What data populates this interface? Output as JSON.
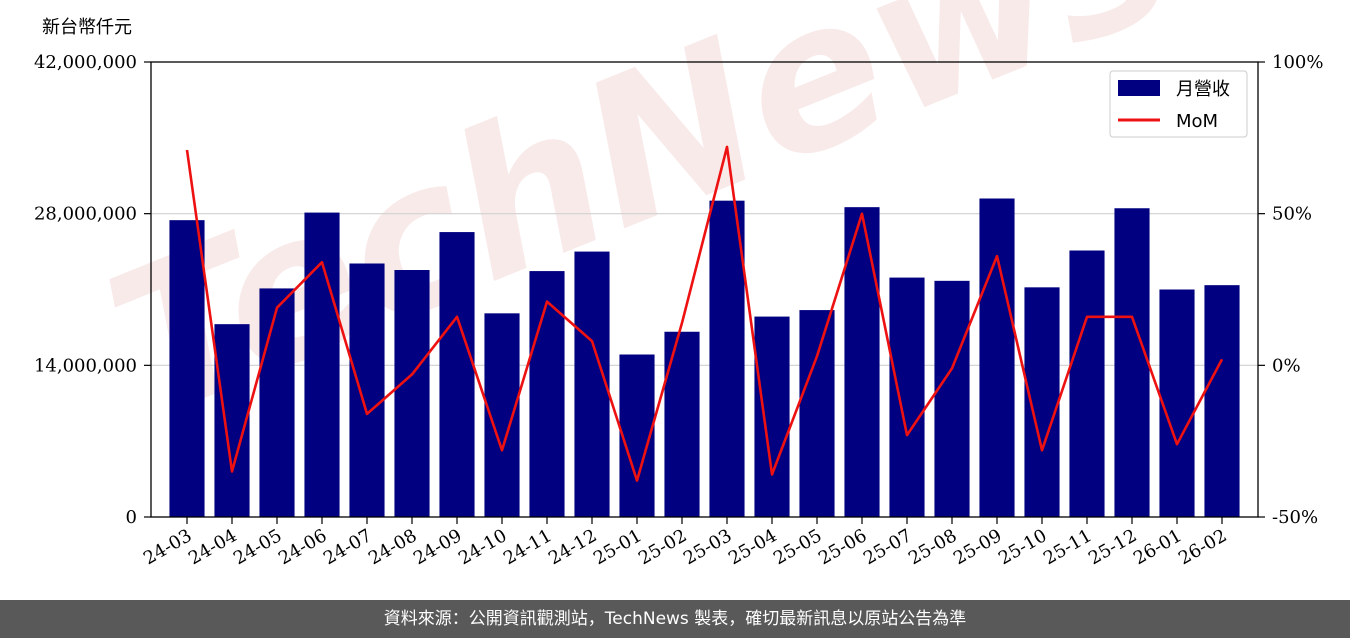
{
  "unit_label": "新台幣仟元",
  "footer": "資料來源：公開資訊觀測站，TechNews 製表，確切最新訊息以原站公告為準",
  "watermark": "TechNews",
  "colors": {
    "bar": "#000080",
    "line": "#ee1111",
    "grid": "#d0d0d0"
  },
  "chart_data": {
    "type": "bar",
    "categories": [
      "24-03",
      "24-04",
      "24-05",
      "24-06",
      "24-07",
      "24-08",
      "24-09",
      "24-10",
      "24-11",
      "24-12",
      "25-01",
      "25-02",
      "25-03",
      "25-04",
      "25-05",
      "25-06",
      "25-07",
      "25-08",
      "25-09",
      "25-10",
      "25-11",
      "25-12",
      "26-01",
      "26-02"
    ],
    "series": [
      {
        "name": "月營收",
        "type": "bar",
        "axis": "left",
        "values": [
          27400000,
          17800000,
          21100000,
          28100000,
          23400000,
          22800000,
          26300000,
          18800000,
          22700000,
          24500000,
          15000000,
          17100000,
          29200000,
          18500000,
          19100000,
          28600000,
          22100000,
          21800000,
          29400000,
          21200000,
          24600000,
          28500000,
          21000000,
          21400000
        ]
      },
      {
        "name": "MoM",
        "type": "line",
        "axis": "right",
        "values": [
          71,
          -35,
          19,
          34,
          -16,
          -3,
          16,
          -28,
          21,
          8,
          -38,
          14,
          72,
          -36,
          3,
          50,
          -23,
          -1,
          36,
          -28,
          16,
          16,
          -26,
          2
        ]
      }
    ],
    "y_left": {
      "min": 0,
      "max": 42000000,
      "ticks": [
        0,
        14000000,
        28000000,
        42000000
      ],
      "tick_labels": [
        "0",
        "14,000,000",
        "28,000,000",
        "42,000,000"
      ]
    },
    "y_right": {
      "min": -50,
      "max": 100,
      "ticks": [
        -50,
        0,
        50,
        100
      ],
      "tick_labels": [
        "-50%",
        "0%",
        "50%",
        "100%"
      ]
    },
    "grid": "horizontal",
    "legend": "top-right"
  }
}
